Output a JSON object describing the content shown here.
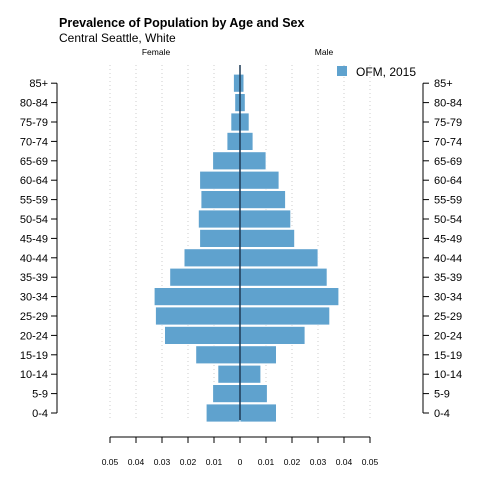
{
  "chart_data": {
    "type": "bar",
    "orientation": "horizontal",
    "subtype": "population-pyramid",
    "title": "Prevalence of Population by Age and Sex",
    "subtitle": "Central Seattle, White",
    "left_label": "Female",
    "right_label": "Male",
    "categories": [
      "0-4",
      "5-9",
      "10-14",
      "15-19",
      "20-24",
      "25-29",
      "30-34",
      "35-39",
      "40-44",
      "45-49",
      "50-54",
      "55-59",
      "60-64",
      "65-69",
      "70-74",
      "75-79",
      "80-84",
      "85+"
    ],
    "series": [
      {
        "name": "OFM, 2015",
        "color": "#5fa2ce",
        "female": [
          0.013,
          0.0105,
          0.0085,
          0.017,
          0.029,
          0.0325,
          0.033,
          0.027,
          0.0215,
          0.0155,
          0.016,
          0.015,
          0.0155,
          0.0105,
          0.005,
          0.0035,
          0.002,
          0.0025
        ],
        "male": [
          0.014,
          0.0105,
          0.008,
          0.014,
          0.025,
          0.0345,
          0.038,
          0.0335,
          0.03,
          0.021,
          0.0195,
          0.0175,
          0.015,
          0.01,
          0.005,
          0.0035,
          0.002,
          0.0015
        ]
      }
    ],
    "xticks": [
      "0.05",
      "0.04",
      "0.03",
      "0.02",
      "0.01",
      "0",
      "0.01",
      "0.02",
      "0.03",
      "0.04",
      "0.05"
    ],
    "xlim": [
      -0.05,
      0.05
    ],
    "grid": "vertical dotted",
    "legend_position": "top-right"
  }
}
